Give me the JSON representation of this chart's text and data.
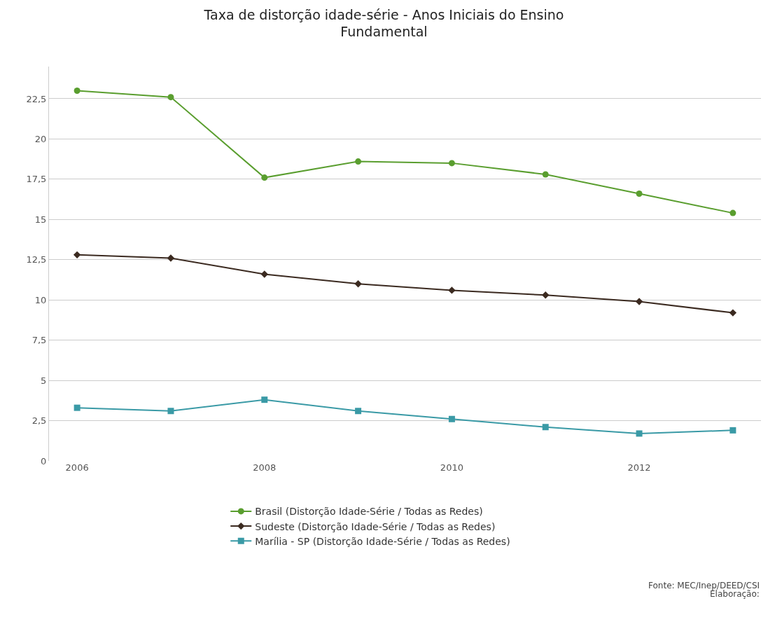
{
  "chart_data": {
    "type": "line",
    "title": "Taxa de distorção idade-série - Anos Iniciais do Ensino\nFundamental",
    "x": [
      2006,
      2007,
      2008,
      2009,
      2010,
      2011,
      2012,
      2013
    ],
    "series": [
      {
        "name": "Brasil (Distorção Idade-Série / Todas as Redes)",
        "color": "#5a9e2f",
        "marker": "circle",
        "values": [
          23.0,
          22.6,
          17.6,
          18.6,
          18.5,
          17.8,
          16.6,
          15.4
        ]
      },
      {
        "name": "Sudeste (Distorção Idade-Série / Todas as Redes)",
        "color": "#3b2a20",
        "marker": "diamond",
        "values": [
          12.8,
          12.6,
          11.6,
          11.0,
          10.6,
          10.3,
          9.9,
          9.2
        ]
      },
      {
        "name": "Marília - SP (Distorção Idade-Série / Todas as Redes)",
        "color": "#3a9aa6",
        "marker": "square",
        "values": [
          3.3,
          3.1,
          3.8,
          3.1,
          2.6,
          2.1,
          1.7,
          1.9
        ]
      }
    ],
    "xlim": [
      2005.7,
      2013.3
    ],
    "xticks": [
      2006,
      2008,
      2010,
      2012
    ],
    "ylim": [
      0,
      24.5
    ],
    "yticks": [
      0,
      {
        "value": 2.5,
        "label": "2,5"
      },
      5,
      {
        "value": 7.5,
        "label": "7,5"
      },
      10,
      {
        "value": 12.5,
        "label": "12,5"
      },
      15,
      {
        "value": 17.5,
        "label": "17,5"
      },
      20,
      {
        "value": 22.5,
        "label": "22,5"
      }
    ],
    "grid": "y",
    "legend": "bottom",
    "line_style": "solid",
    "annotations": [
      "Fonte: MEC/Inep/DEED/CSI",
      "Elaboração:"
    ]
  }
}
